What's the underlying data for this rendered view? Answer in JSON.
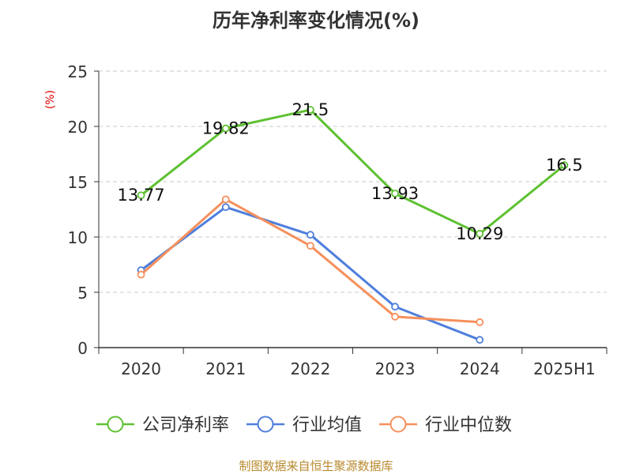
{
  "chart_data": {
    "type": "line",
    "title": "历年净利率变化情况(%)",
    "ylabel": "(%)",
    "xlabel": "",
    "categories": [
      "2020",
      "2021",
      "2022",
      "2023",
      "2024",
      "2025H1"
    ],
    "ylim": [
      0,
      25
    ],
    "yticks": [
      0,
      5,
      10,
      15,
      20,
      25
    ],
    "grid": true,
    "legend_position": "bottom",
    "series": [
      {
        "name": "公司净利率",
        "values": [
          13.77,
          19.82,
          21.5,
          13.93,
          10.29,
          16.5
        ],
        "color": "#5ec132",
        "labels": true
      },
      {
        "name": "行业均值",
        "values": [
          7.0,
          12.7,
          10.2,
          3.7,
          0.7,
          null
        ],
        "color": "#4f7fdc",
        "labels": false
      },
      {
        "name": "行业中位数",
        "values": [
          6.6,
          13.4,
          9.2,
          2.8,
          2.3,
          null
        ],
        "color": "#f5905c",
        "labels": false
      }
    ],
    "source": "制图数据来自恒生聚源数据库"
  }
}
